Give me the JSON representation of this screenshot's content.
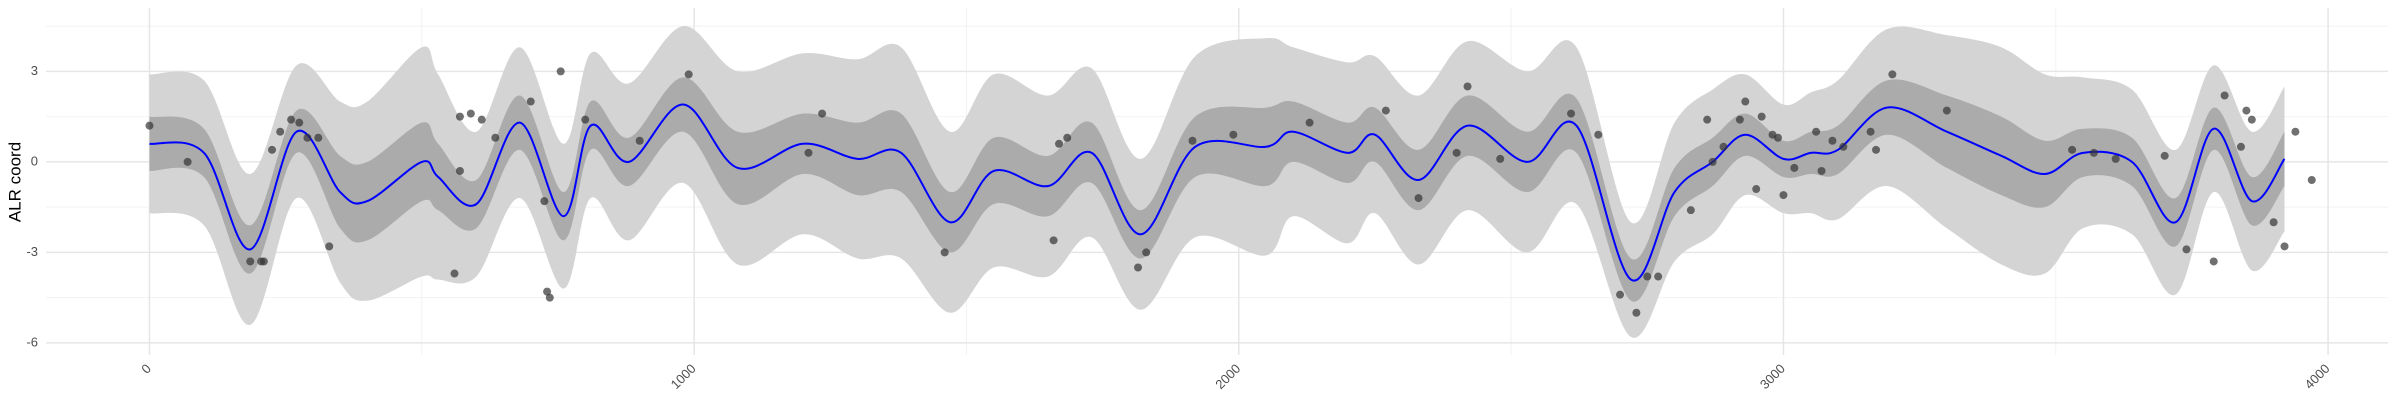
{
  "chart_data": {
    "type": "line",
    "y_label": "ALR coord",
    "x": [
      0,
      100,
      185,
      270,
      350,
      400,
      500,
      530,
      600,
      680,
      760,
      810,
      880,
      980,
      1080,
      1200,
      1300,
      1380,
      1470,
      1550,
      1650,
      1730,
      1820,
      1920,
      2050,
      2100,
      2200,
      2250,
      2330,
      2420,
      2530,
      2620,
      2720,
      2800,
      2870,
      2930,
      3000,
      3050,
      3100,
      3190,
      3300,
      3400,
      3480,
      3550,
      3640,
      3720,
      3790,
      3860,
      3920
    ],
    "series": [
      {
        "color": "#0000ff",
        "values": [
          0.6,
          0.3,
          -2.9,
          1.0,
          -1.0,
          -1.3,
          0.0,
          -0.5,
          -1.4,
          1.3,
          -1.8,
          1.2,
          0.0,
          1.9,
          -0.2,
          0.6,
          0.1,
          0.3,
          -2.0,
          -0.3,
          -0.8,
          0.3,
          -2.4,
          0.5,
          0.5,
          1.0,
          0.3,
          0.9,
          -0.6,
          1.2,
          0.0,
          1.2,
          -3.9,
          -1.0,
          0.0,
          0.9,
          0.1,
          0.3,
          0.4,
          1.8,
          1.0,
          0.2,
          -0.4,
          0.3,
          0.0,
          -2.0,
          1.1,
          -1.3,
          0.1
        ]
      }
    ],
    "bands": [
      {
        "color": "#d4d4d4",
        "lower": [
          -1.7,
          -2.1,
          -5.4,
          -1.2,
          -4.0,
          -4.6,
          -3.8,
          -3.9,
          -3.8,
          -1.2,
          -4.2,
          -1.2,
          -2.6,
          -0.7,
          -3.4,
          -2.4,
          -3.2,
          -3.2,
          -5.0,
          -3.5,
          -3.8,
          -2.5,
          -4.9,
          -2.5,
          -3.1,
          -1.8,
          -2.7,
          -1.7,
          -3.4,
          -1.6,
          -3.0,
          -1.4,
          -5.8,
          -3.3,
          -2.4,
          -1.1,
          -1.7,
          -1.7,
          -1.9,
          -0.8,
          -2.2,
          -3.4,
          -3.7,
          -2.2,
          -2.4,
          -4.4,
          -1.0,
          -3.6,
          -2.3
        ],
        "upper": [
          2.9,
          2.7,
          -0.4,
          3.2,
          2.0,
          2.0,
          3.8,
          2.9,
          1.0,
          3.8,
          0.6,
          3.6,
          2.6,
          4.5,
          3.0,
          3.6,
          3.4,
          3.8,
          1.0,
          2.9,
          2.2,
          3.1,
          0.1,
          3.5,
          4.1,
          3.8,
          3.3,
          3.5,
          2.2,
          4.0,
          3.0,
          3.8,
          -2.0,
          1.3,
          2.4,
          2.9,
          1.9,
          2.3,
          2.7,
          4.4,
          4.2,
          3.8,
          2.9,
          2.8,
          2.4,
          0.4,
          3.2,
          1.0,
          2.5
        ]
      },
      {
        "color": "#ababab",
        "lower": [
          -0.3,
          -0.5,
          -3.7,
          0.3,
          -2.2,
          -2.6,
          -1.3,
          -1.6,
          -2.2,
          0.4,
          -2.6,
          0.4,
          -0.8,
          1.0,
          -1.4,
          -0.4,
          -1.1,
          -1.0,
          -3.0,
          -1.4,
          -1.8,
          -0.7,
          -3.2,
          -0.5,
          -0.8,
          0.0,
          -0.7,
          0.0,
          -1.6,
          0.2,
          -1.0,
          0.3,
          -4.6,
          -1.8,
          -0.8,
          0.2,
          -0.5,
          -0.4,
          -0.4,
          0.9,
          -0.2,
          -1.1,
          -1.5,
          -0.5,
          -0.8,
          -2.8,
          0.4,
          -2.1,
          -0.8
        ],
        "upper": [
          1.5,
          1.1,
          -2.1,
          1.7,
          0.2,
          0.0,
          1.3,
          0.6,
          -0.6,
          2.2,
          -1.0,
          2.0,
          0.8,
          2.8,
          1.0,
          1.6,
          1.3,
          1.6,
          -1.0,
          0.8,
          0.2,
          1.3,
          -1.6,
          1.5,
          1.8,
          2.0,
          1.3,
          1.8,
          0.4,
          2.2,
          1.0,
          2.1,
          -3.2,
          -0.2,
          0.8,
          1.6,
          0.7,
          1.0,
          1.2,
          2.7,
          2.2,
          1.5,
          0.7,
          1.1,
          0.8,
          -1.2,
          1.8,
          -0.5,
          1.0
        ]
      }
    ],
    "points": {
      "color": "#333333",
      "x": [
        0,
        70,
        185,
        205,
        210,
        225,
        240,
        260,
        275,
        290,
        310,
        330,
        560,
        570,
        570,
        590,
        610,
        635,
        700,
        725,
        730,
        735,
        755,
        800,
        900,
        990,
        1210,
        1235,
        1460,
        1660,
        1670,
        1685,
        1815,
        1830,
        1915,
        1990,
        2130,
        2270,
        2330,
        2400,
        2420,
        2480,
        2610,
        2660,
        2700,
        2730,
        2750,
        2770,
        2830,
        2860,
        2870,
        2890,
        2920,
        2930,
        2950,
        2960,
        2980,
        2990,
        3000,
        3020,
        3060,
        3070,
        3090,
        3110,
        3160,
        3170,
        3200,
        3300,
        3530,
        3570,
        3610,
        3700,
        3740,
        3790,
        3810,
        3840,
        3850,
        3860,
        3900,
        3920,
        3940,
        3970
      ],
      "y": [
        1.2,
        0.0,
        -3.3,
        -3.3,
        -3.3,
        0.4,
        1.0,
        1.4,
        1.3,
        0.8,
        0.8,
        -2.8,
        -3.7,
        -0.3,
        1.5,
        1.6,
        1.4,
        0.8,
        2.0,
        -1.3,
        -4.3,
        -4.5,
        3.0,
        1.4,
        0.7,
        2.9,
        0.3,
        1.6,
        -3.0,
        -2.6,
        0.6,
        0.8,
        -3.5,
        -3.0,
        0.7,
        0.9,
        1.3,
        1.7,
        -1.2,
        0.3,
        2.5,
        0.1,
        1.6,
        0.9,
        -4.4,
        -5.0,
        -3.8,
        -3.8,
        -1.6,
        1.4,
        0.0,
        0.5,
        1.4,
        2.0,
        -0.9,
        1.5,
        0.9,
        0.8,
        -1.1,
        -0.2,
        1.0,
        -0.3,
        0.7,
        0.5,
        1.0,
        0.4,
        2.9,
        1.7,
        0.4,
        0.3,
        0.1,
        0.2,
        -2.9,
        -3.3,
        2.2,
        0.5,
        1.7,
        1.4,
        -2.0,
        -2.8,
        1.0,
        -0.6
      ]
    },
    "xlim": [
      -190,
      4110
    ],
    "ylim": [
      -6.4,
      5.1
    ],
    "xticks": [
      0,
      1000,
      2000,
      3000,
      4000
    ],
    "yticks": [
      -6,
      -3,
      0,
      3
    ],
    "xminor": [
      500,
      1500,
      2500,
      3500
    ],
    "yminor": [
      -4.5,
      -1.5,
      1.5,
      4.5
    ],
    "grid": true
  }
}
